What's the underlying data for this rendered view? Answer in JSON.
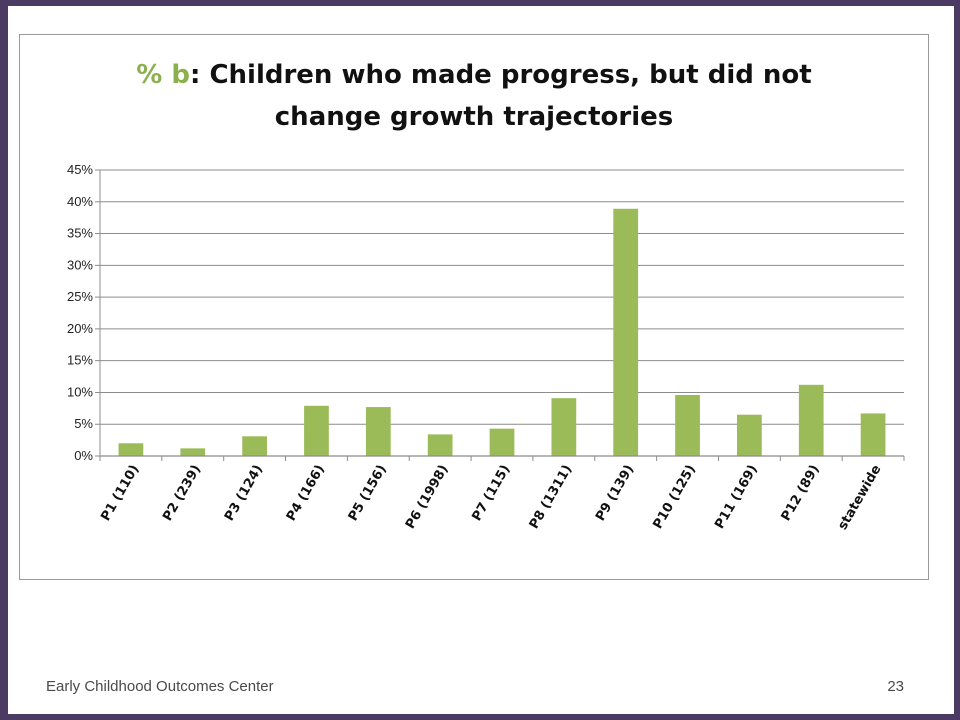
{
  "slide": {
    "footer_text": "Early Childhood Outcomes Center",
    "page_number": "23"
  },
  "colors": {
    "frame": "#4b3b63",
    "bar": "#9bbb59",
    "title_accent": "#8db04f",
    "grid": "#8c8c8c"
  },
  "chart_data": {
    "type": "bar",
    "title_prefix": "% b",
    "title_rest_line1": ": Children who made progress, but did not",
    "title_line2": "change growth trajectories",
    "categories": [
      "P1 (110)",
      "P2 (239)",
      "P3 (124)",
      "P4 (166)",
      "P5 (156)",
      "P6 (1998)",
      "P7 (115)",
      "P8 (1311)",
      "P9 (139)",
      "P10 (125)",
      "P11 (169)",
      "P12 (89)",
      "statewide"
    ],
    "values": [
      2.0,
      1.2,
      3.1,
      7.9,
      7.7,
      3.4,
      4.3,
      9.1,
      38.9,
      9.6,
      6.5,
      11.2,
      6.7
    ],
    "yticks": [
      "0%",
      "5%",
      "10%",
      "15%",
      "20%",
      "25%",
      "30%",
      "35%",
      "40%",
      "45%"
    ],
    "ylim": [
      0,
      45
    ],
    "grid": true,
    "legend": "none"
  }
}
